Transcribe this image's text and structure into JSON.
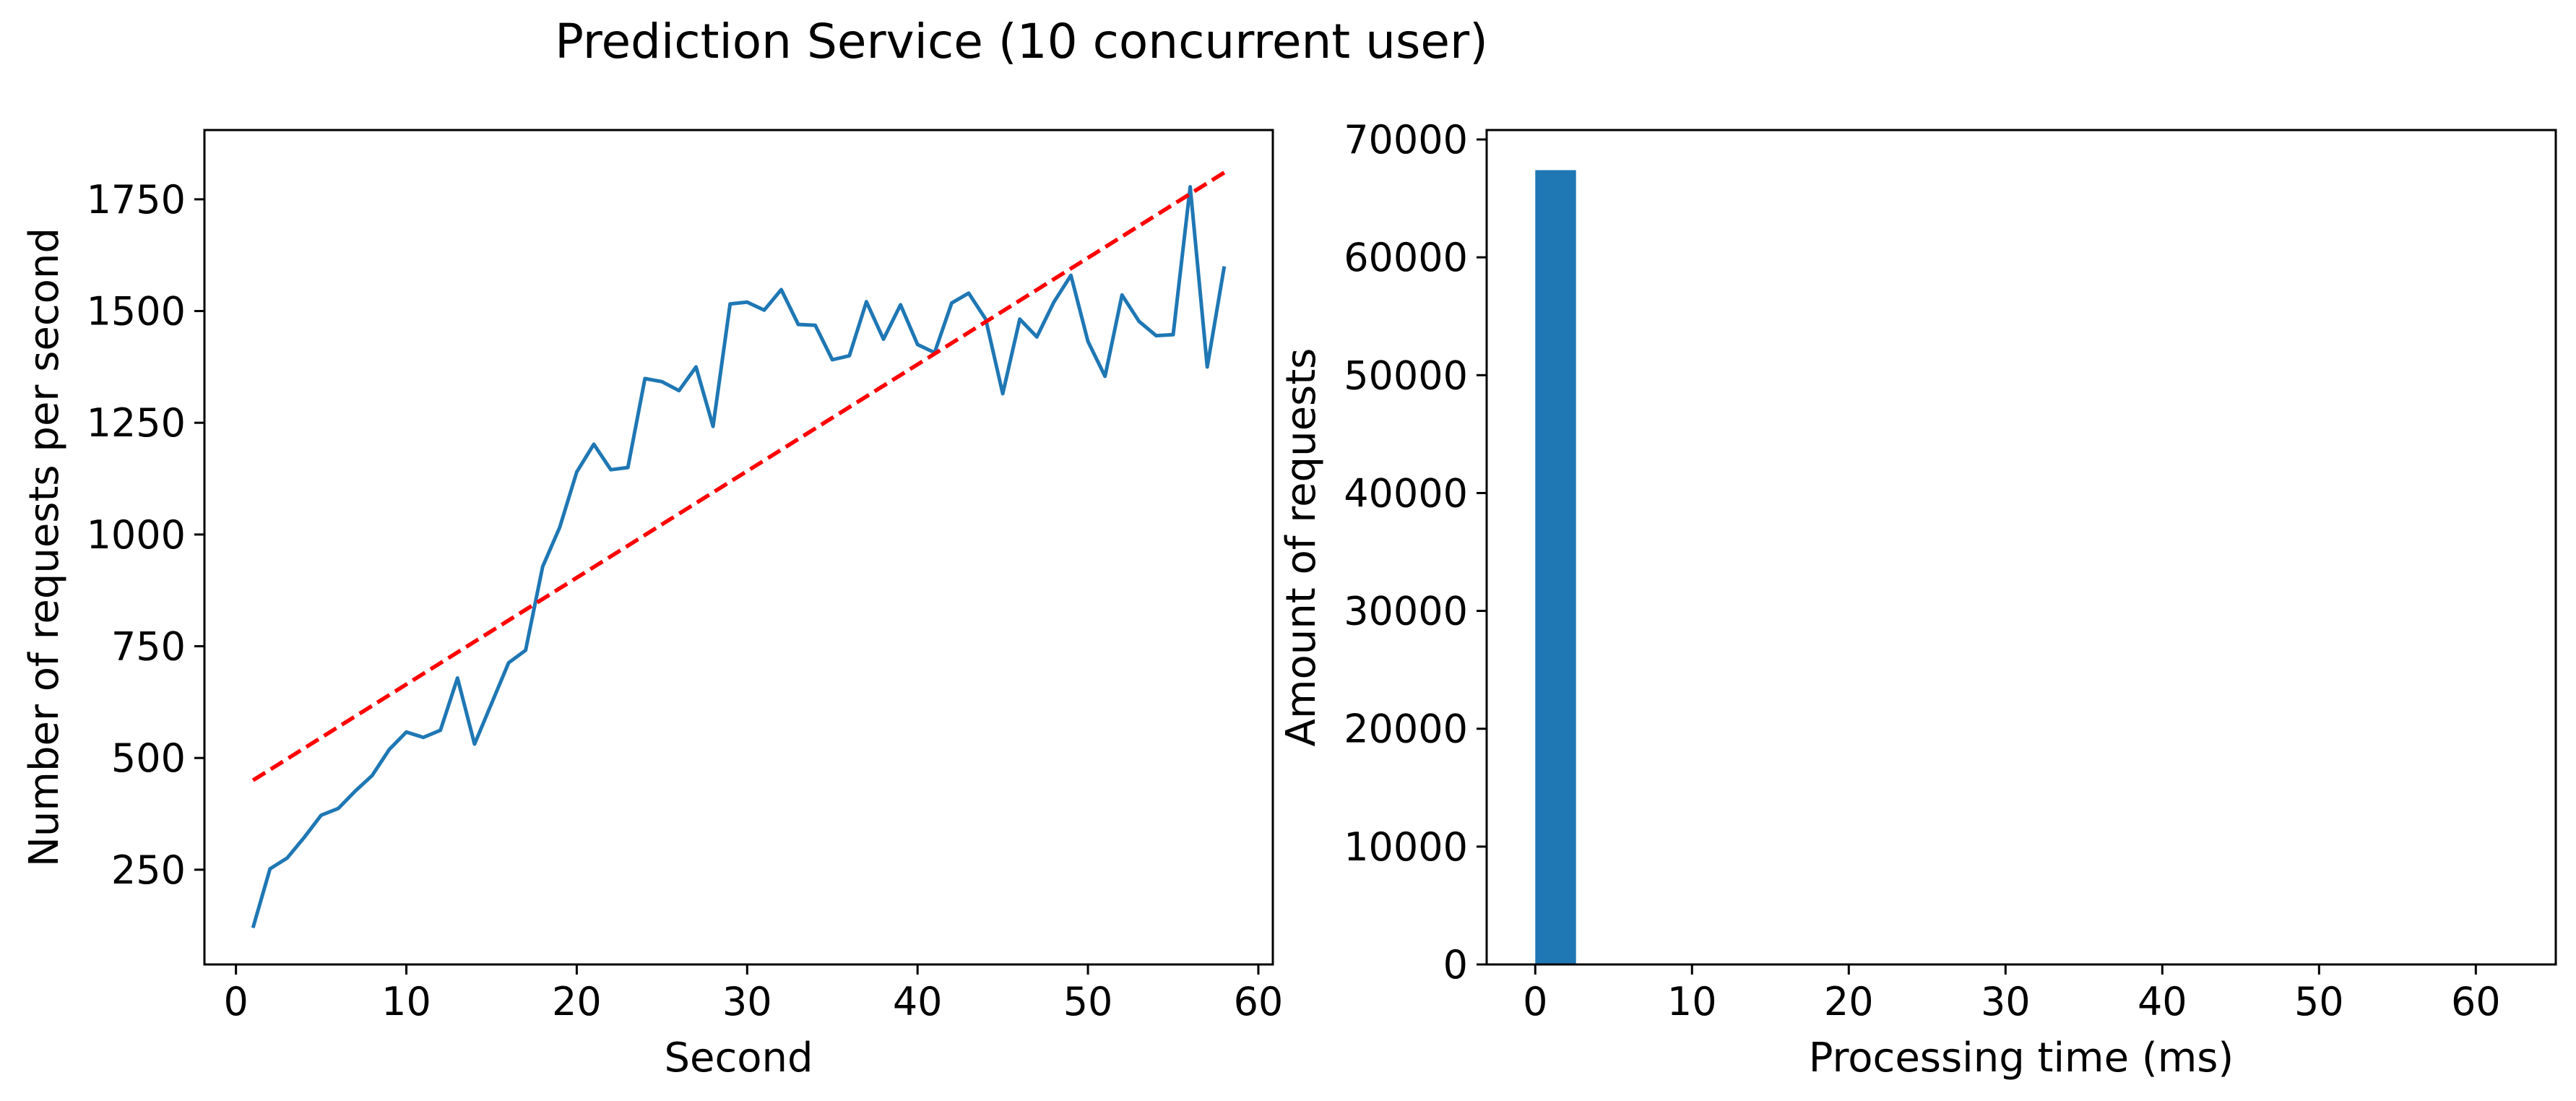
{
  "title": "Prediction Service (10 concurrent user)",
  "colors": {
    "line": "#1f77b4",
    "trend": "#ff0000",
    "bar": "#1f77b4",
    "axis": "#000000"
  },
  "chart_data": [
    {
      "type": "line",
      "xlabel": "Second",
      "ylabel": "Number of requests per second",
      "xlim": [
        -1.85,
        60.85
      ],
      "ylim": [
        38,
        1905
      ],
      "xticks": [
        0,
        10,
        20,
        30,
        40,
        50,
        60
      ],
      "yticks": [
        250,
        500,
        750,
        1000,
        1250,
        1500,
        1750
      ],
      "grid": false,
      "series": [
        {
          "style": "solid",
          "color": "#1f77b4",
          "x": [
            1,
            2,
            3,
            4,
            5,
            6,
            7,
            8,
            9,
            10,
            11,
            12,
            13,
            14,
            15,
            16,
            17,
            18,
            19,
            20,
            21,
            22,
            23,
            24,
            25,
            26,
            27,
            28,
            29,
            30,
            31,
            32,
            33,
            34,
            35,
            36,
            37,
            38,
            39,
            40,
            41,
            42,
            43,
            44,
            45,
            46,
            47,
            48,
            49,
            50,
            51,
            52,
            53,
            54,
            55,
            56,
            57,
            58
          ],
          "y": [
            120,
            252,
            276,
            322,
            372,
            387,
            426,
            461,
            519,
            558,
            546,
            562,
            679,
            531,
            622,
            713,
            741,
            928,
            1016,
            1140,
            1202,
            1145,
            1150,
            1349,
            1342,
            1322,
            1375,
            1242,
            1516,
            1520,
            1502,
            1548,
            1470,
            1468,
            1391,
            1400,
            1521,
            1437,
            1514,
            1425,
            1407,
            1518,
            1540,
            1482,
            1315,
            1482,
            1442,
            1520,
            1580,
            1432,
            1354,
            1536,
            1477,
            1445,
            1447,
            1778,
            1375,
            1600
          ]
        },
        {
          "style": "dashed",
          "color": "#ff0000",
          "x": [
            1,
            58
          ],
          "y": [
            450,
            1810
          ]
        }
      ]
    },
    {
      "type": "bar",
      "xlabel": "Processing time (ms)",
      "ylabel": "Amount of requests",
      "xlim": [
        -3.1,
        65.1
      ],
      "ylim": [
        0,
        70800
      ],
      "xticks": [
        0,
        10,
        20,
        30,
        40,
        50,
        60
      ],
      "yticks": [
        0,
        10000,
        20000,
        30000,
        40000,
        50000,
        60000,
        70000
      ],
      "grid": false,
      "bins": [
        {
          "x0": 0,
          "x1": 2.6,
          "count": 67400
        }
      ]
    }
  ]
}
